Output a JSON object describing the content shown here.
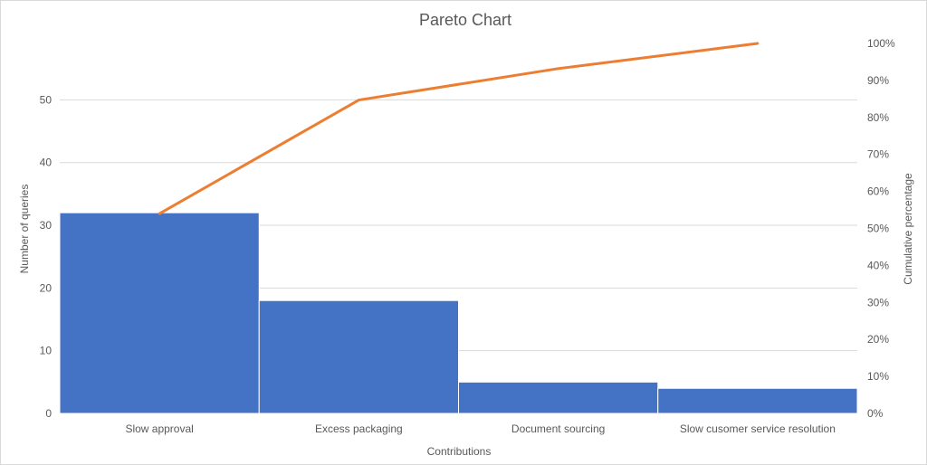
{
  "chart_data": {
    "type": "bar",
    "title": "Pareto Chart",
    "xlabel": "Contributions",
    "ylabel": "Number of queries",
    "y2label": "Cumulative percentage",
    "categories": [
      "Slow approval",
      "Excess packaging",
      "Document sourcing",
      "Slow cusomer service resolution"
    ],
    "series": [
      {
        "values": [
          32,
          18,
          5,
          4
        ],
        "color": "#4472C4",
        "kind": "bar"
      },
      {
        "values": [
          54,
          84.7,
          93.2,
          100
        ],
        "color": "#ED7D31",
        "kind": "line",
        "axis": "secondary"
      }
    ],
    "ylim": [
      0,
      59
    ],
    "y_ticks": [
      0,
      10,
      20,
      30,
      40,
      50
    ],
    "y2lim": [
      0,
      100
    ],
    "y2_ticks": [
      "0%",
      "10%",
      "20%",
      "30%",
      "40%",
      "50%",
      "60%",
      "70%",
      "80%",
      "90%",
      "100%"
    ],
    "grid": true,
    "legend": "none"
  }
}
